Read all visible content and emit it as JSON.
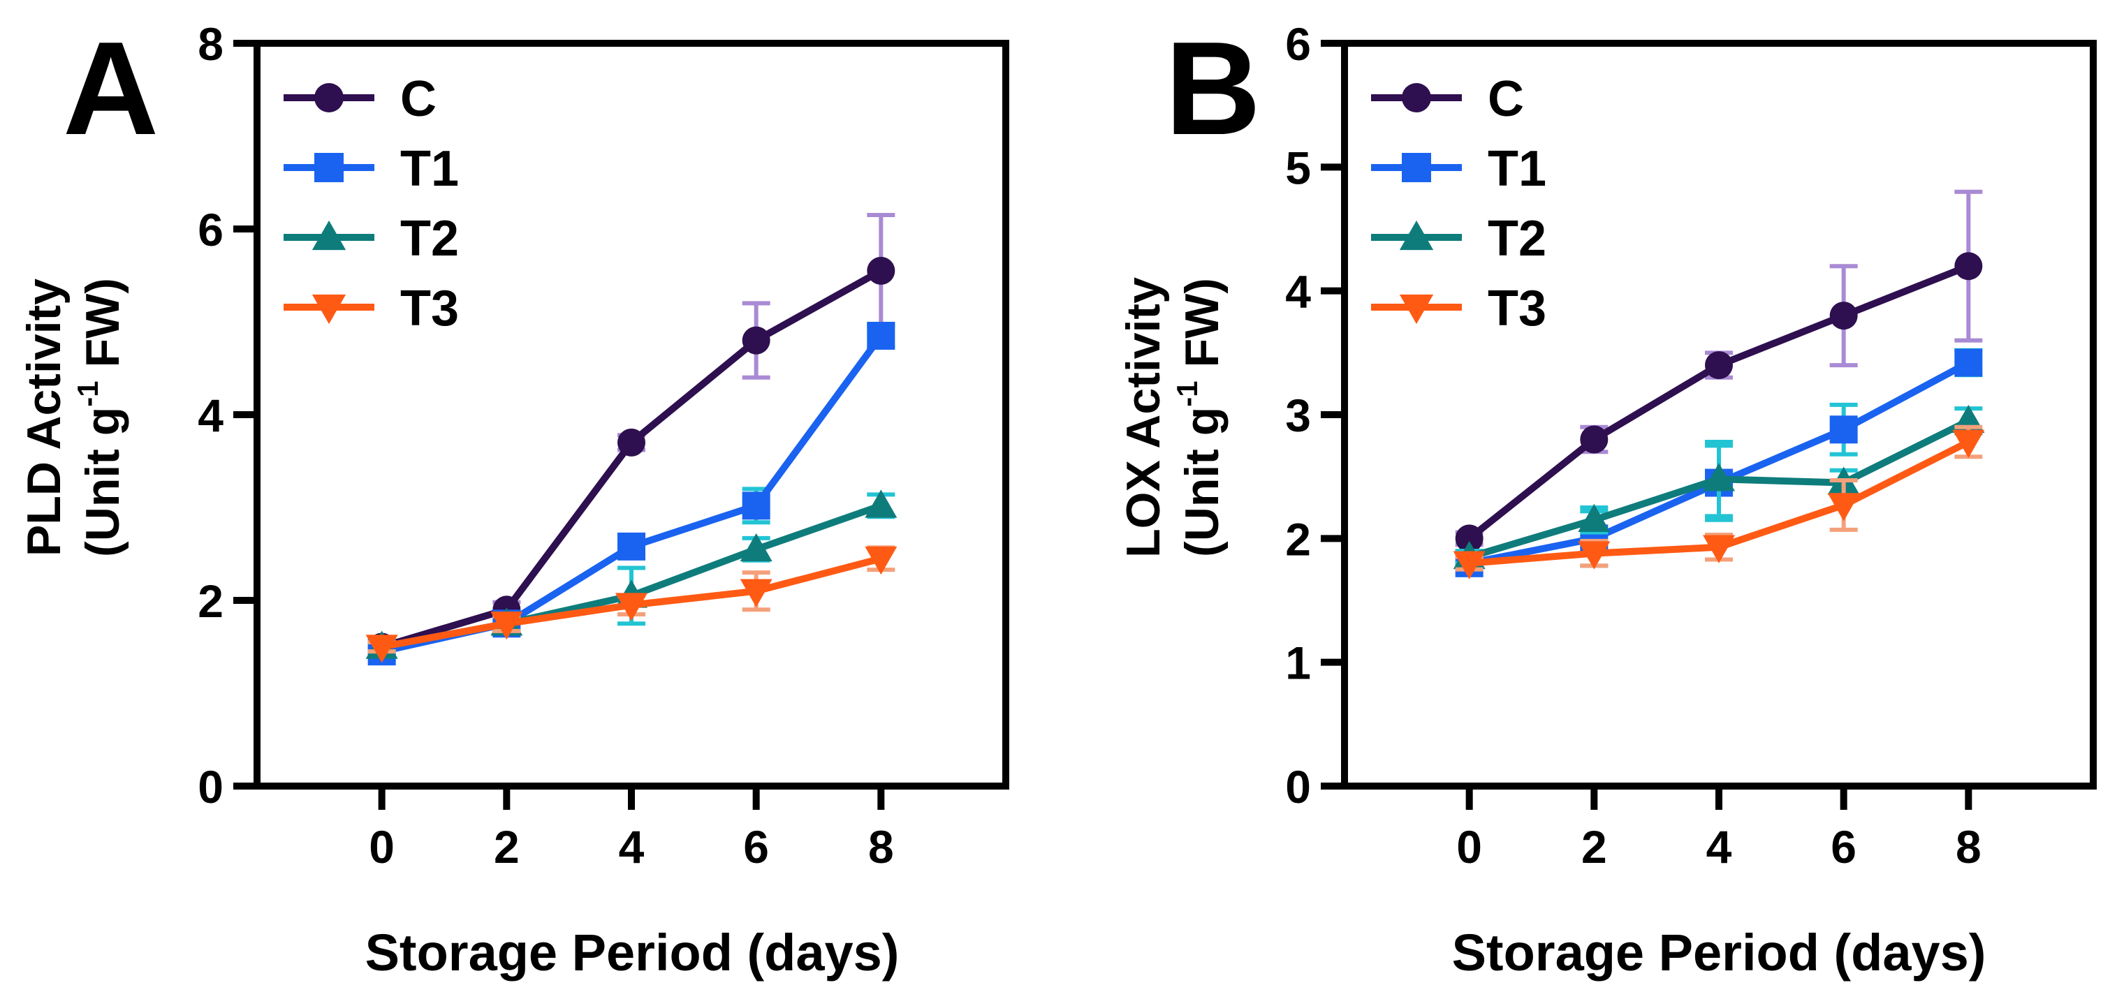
{
  "figure": {
    "colors": {
      "C": "#2e0f4f",
      "T1": "#1a63f0",
      "T2": "#0f7c7c",
      "T3": "#ff5a14",
      "C_err": "#a98ad4",
      "T1_err": "#22c4d4",
      "T2_err": "#22c4d4",
      "T3_err": "#f4a07a"
    }
  },
  "chart_data": [
    {
      "type": "line",
      "panel_label": "A",
      "title": "",
      "xlabel": "Storage Period (days)",
      "ylabel_line1": "PLD Activity",
      "ylabel_line2_main": "(Unit g",
      "ylabel_line2_sup": "-1",
      "ylabel_line2_end": " FW)",
      "x": [
        0,
        2,
        4,
        6,
        8
      ],
      "xticks": [
        "0",
        "2",
        "4",
        "6",
        "8"
      ],
      "xlim": [
        -2,
        10
      ],
      "ylim": [
        0,
        8
      ],
      "yticks": [
        "0",
        "2",
        "4",
        "6",
        "8"
      ],
      "ytick_values": [
        0,
        2,
        4,
        6,
        8
      ],
      "legend_position": "top-left",
      "series": [
        {
          "name": "C",
          "marker": "circle",
          "values": [
            1.5,
            1.9,
            3.7,
            4.8,
            5.55
          ],
          "errors": [
            0.05,
            0.08,
            0.08,
            0.4,
            0.6
          ]
        },
        {
          "name": "T1",
          "marker": "square",
          "values": [
            1.45,
            1.75,
            2.58,
            3.02,
            4.85
          ],
          "errors": [
            0.05,
            0.1,
            0.12,
            0.18,
            0.12
          ]
        },
        {
          "name": "T2",
          "marker": "triangle-up",
          "values": [
            1.5,
            1.75,
            2.05,
            2.55,
            3.02
          ],
          "errors": [
            0.05,
            0.08,
            0.3,
            0.12,
            0.12
          ]
        },
        {
          "name": "T3",
          "marker": "triangle-down",
          "values": [
            1.5,
            1.75,
            1.95,
            2.1,
            2.45
          ],
          "errors": [
            0.05,
            0.08,
            0.1,
            0.2,
            0.12
          ]
        }
      ]
    },
    {
      "type": "line",
      "panel_label": "B",
      "title": "",
      "xlabel": "Storage Period (days)",
      "ylabel_line1": "LOX Activity",
      "ylabel_line2_main": "(Unit g",
      "ylabel_line2_sup": "-1",
      "ylabel_line2_end": " FW)",
      "x": [
        0,
        2,
        4,
        6,
        8
      ],
      "xticks": [
        "0",
        "2",
        "4",
        "6",
        "8"
      ],
      "xlim": [
        -2,
        10
      ],
      "ylim": [
        0,
        6
      ],
      "yticks": [
        "0",
        "1",
        "2",
        "3",
        "4",
        "5",
        "6"
      ],
      "ytick_values": [
        0,
        1,
        2,
        3,
        4,
        5,
        6
      ],
      "legend_position": "top-left",
      "series": [
        {
          "name": "C",
          "marker": "circle",
          "values": [
            2.0,
            2.8,
            3.4,
            3.8,
            4.2
          ],
          "errors": [
            0.05,
            0.1,
            0.1,
            0.4,
            0.6
          ]
        },
        {
          "name": "T1",
          "marker": "square",
          "values": [
            1.8,
            2.0,
            2.45,
            2.88,
            3.42
          ],
          "errors": [
            0.05,
            0.22,
            0.3,
            0.2,
            0.1
          ]
        },
        {
          "name": "T2",
          "marker": "triangle-up",
          "values": [
            1.85,
            2.15,
            2.48,
            2.45,
            2.95
          ],
          "errors": [
            0.05,
            0.1,
            0.3,
            0.1,
            0.1
          ]
        },
        {
          "name": "T3",
          "marker": "triangle-down",
          "values": [
            1.8,
            1.88,
            1.93,
            2.27,
            2.78
          ],
          "errors": [
            0.05,
            0.1,
            0.1,
            0.2,
            0.12
          ]
        }
      ]
    }
  ]
}
